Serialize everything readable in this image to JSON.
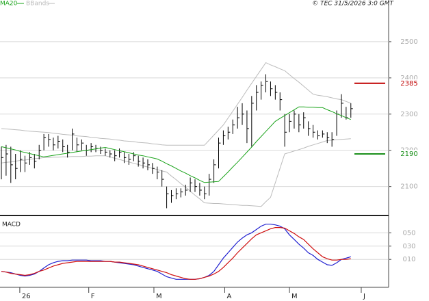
{
  "chart_data": [
    {
      "type": "ohlc",
      "source": "© TEC 31/5/2026 3:0 GMT",
      "x": [
        0,
        1,
        2,
        3,
        4,
        5,
        6,
        7,
        8,
        9,
        10,
        11,
        12,
        13,
        14,
        15,
        16,
        17,
        18,
        19,
        20,
        21,
        22,
        23,
        24,
        25,
        26,
        27,
        28,
        29,
        30,
        31,
        32,
        33,
        34,
        35,
        36,
        37,
        38,
        39,
        40,
        41,
        42,
        43,
        44,
        45,
        46,
        47,
        48,
        49,
        50,
        51,
        52,
        53,
        54,
        55,
        56,
        57,
        58,
        59,
        60,
        61,
        62,
        63,
        64,
        65,
        66,
        67,
        68,
        69,
        70,
        71,
        72,
        73,
        74
      ],
      "xlim": [
        0,
        82
      ],
      "high": [
        2210,
        2215,
        2210,
        2190,
        2200,
        2185,
        2195,
        2190,
        2215,
        2245,
        2245,
        2235,
        2240,
        2230,
        2215,
        2260,
        2235,
        2230,
        2215,
        2220,
        2215,
        2210,
        2205,
        2200,
        2200,
        2205,
        2195,
        2190,
        2195,
        2185,
        2180,
        2175,
        2165,
        2155,
        2145,
        2100,
        2090,
        2095,
        2095,
        2105,
        2125,
        2120,
        2110,
        2100,
        2135,
        2175,
        2235,
        2255,
        2265,
        2285,
        2320,
        2330,
        2310,
        2350,
        2380,
        2390,
        2410,
        2390,
        2380,
        2360,
        2300,
        2300,
        2310,
        2300,
        2305,
        2280,
        2270,
        2255,
        2255,
        2250,
        2250,
        2310,
        2355,
        2320,
        2330
      ],
      "low": [
        2120,
        2130,
        2110,
        2120,
        2140,
        2140,
        2160,
        2150,
        2175,
        2200,
        2210,
        2200,
        2205,
        2195,
        2180,
        2200,
        2195,
        2200,
        2185,
        2195,
        2195,
        2190,
        2185,
        2180,
        2170,
        2180,
        2165,
        2160,
        2170,
        2155,
        2150,
        2145,
        2135,
        2120,
        2100,
        2040,
        2055,
        2065,
        2070,
        2075,
        2085,
        2085,
        2075,
        2065,
        2075,
        2110,
        2150,
        2215,
        2230,
        2245,
        2260,
        2270,
        2220,
        2210,
        2310,
        2340,
        2360,
        2350,
        2340,
        2310,
        2210,
        2250,
        2260,
        2250,
        2260,
        2240,
        2235,
        2230,
        2235,
        2220,
        2210,
        2240,
        2290,
        2285,
        2290
      ],
      "close": [
        2180,
        2190,
        2160,
        2150,
        2175,
        2165,
        2180,
        2170,
        2200,
        2235,
        2230,
        2215,
        2225,
        2210,
        2195,
        2245,
        2215,
        2220,
        2200,
        2210,
        2205,
        2200,
        2195,
        2190,
        2185,
        2195,
        2180,
        2175,
        2185,
        2170,
        2165,
        2160,
        2150,
        2140,
        2120,
        2080,
        2075,
        2080,
        2085,
        2090,
        2110,
        2100,
        2090,
        2080,
        2120,
        2160,
        2220,
        2240,
        2250,
        2270,
        2290,
        2300,
        2260,
        2330,
        2360,
        2380,
        2390,
        2370,
        2360,
        2340,
        2250,
        2280,
        2300,
        2270,
        2290,
        2260,
        2250,
        2240,
        2245,
        2235,
        2230,
        2300,
        2330,
        2290,
        2315
      ],
      "color": "#000000",
      "series": [
        {
          "name": "MA20",
          "color": "#1aa31a",
          "values": [
            2210,
            2207,
            2204,
            2201,
            2197,
            2194,
            2191,
            2188,
            2185,
            2182,
            2184,
            2186,
            2188,
            2190,
            2192,
            2194,
            2196,
            2198,
            2200,
            2202,
            2204,
            2206,
            2208,
            2205,
            2202,
            2199,
            2196,
            2193,
            2190,
            2187,
            2185,
            2182,
            2179,
            2176,
            2170,
            2163,
            2157,
            2150,
            2143,
            2137,
            2130,
            2124,
            2117,
            2111,
            2112,
            2113,
            2114,
            2127,
            2140,
            2154,
            2167,
            2181,
            2195,
            2209,
            2224,
            2238,
            2252,
            2266,
            2280,
            2288,
            2296,
            2304,
            2312,
            2320,
            2320,
            2319,
            2319,
            2318,
            2318,
            2312,
            2307,
            2301,
            2296,
            2290,
            2285
          ]
        },
        {
          "name": "BBands",
          "color": "#bbbbbb",
          "upper": [
            2260,
            2259,
            2258,
            2257,
            2256,
            2254,
            2253,
            2252,
            2251,
            2250,
            2249,
            2247,
            2246,
            2244,
            2243,
            2242,
            2240,
            2239,
            2238,
            2236,
            2235,
            2233,
            2232,
            2231,
            2229,
            2228,
            2226,
            2225,
            2224,
            2222,
            2221,
            2220,
            2218,
            2217,
            2215,
            2214,
            2214,
            2214,
            2214,
            2214,
            2214,
            2214,
            2214,
            2214,
            2228,
            2242,
            2256,
            2270,
            2289,
            2308,
            2327,
            2346,
            2366,
            2385,
            2404,
            2423,
            2442,
            2436,
            2431,
            2425,
            2420,
            2409,
            2398,
            2388,
            2377,
            2366,
            2355,
            2352,
            2350,
            2348,
            2345,
            2342,
            2340,
            2335,
            2330
          ],
          "lower": [
            2165,
            2167,
            2168,
            2170,
            2172,
            2173,
            2175,
            2177,
            2178,
            2180,
            2180,
            2181,
            2181,
            2182,
            2182,
            2183,
            2183,
            2183,
            2184,
            2184,
            2185,
            2185,
            2185,
            2182,
            2178,
            2175,
            2171,
            2168,
            2164,
            2161,
            2157,
            2154,
            2150,
            2147,
            2143,
            2140,
            2129,
            2119,
            2108,
            2098,
            2087,
            2076,
            2066,
            2055,
            2054,
            2053,
            2053,
            2052,
            2051,
            2050,
            2049,
            2048,
            2048,
            2047,
            2046,
            2045,
            2058,
            2070,
            2110,
            2150,
            2190,
            2194,
            2198,
            2202,
            2206,
            2211,
            2215,
            2219,
            2223,
            2227,
            2228,
            2229,
            2230,
            2231,
            2232
          ]
        }
      ],
      "price_lines": [
        {
          "value": 2385,
          "color": "#c00000"
        },
        {
          "value": 2190,
          "color": "#1a8f1a"
        }
      ],
      "ylim": [
        2020,
        2600
      ],
      "yticks": [
        2100,
        2200,
        2300,
        2400,
        2500
      ],
      "grid": true
    },
    {
      "type": "line",
      "title": "MACD",
      "series": [
        {
          "color": "#2020d0",
          "values": [
            -0.08,
            -0.09,
            -0.1,
            -0.12,
            -0.14,
            -0.15,
            -0.14,
            -0.12,
            -0.08,
            -0.03,
            0.02,
            0.05,
            0.07,
            0.08,
            0.08,
            0.09,
            0.09,
            0.09,
            0.09,
            0.08,
            0.08,
            0.08,
            0.07,
            0.07,
            0.06,
            0.05,
            0.04,
            0.03,
            0.02,
            0.0,
            -0.02,
            -0.04,
            -0.06,
            -0.08,
            -0.12,
            -0.16,
            -0.18,
            -0.2,
            -0.2,
            -0.2,
            -0.2,
            -0.2,
            -0.19,
            -0.17,
            -0.14,
            -0.08,
            0.02,
            0.12,
            0.2,
            0.28,
            0.36,
            0.42,
            0.47,
            0.5,
            0.55,
            0.6,
            0.63,
            0.63,
            0.62,
            0.6,
            0.56,
            0.47,
            0.4,
            0.33,
            0.27,
            0.2,
            0.16,
            0.1,
            0.06,
            0.02,
            0.01,
            0.05,
            0.1,
            0.12,
            0.14
          ]
        },
        {
          "color": "#d01010",
          "values": [
            -0.08,
            -0.09,
            -0.11,
            -0.12,
            -0.13,
            -0.14,
            -0.13,
            -0.11,
            -0.08,
            -0.06,
            -0.03,
            0.0,
            0.02,
            0.04,
            0.05,
            0.06,
            0.07,
            0.07,
            0.07,
            0.07,
            0.07,
            0.07,
            0.07,
            0.07,
            0.06,
            0.06,
            0.05,
            0.04,
            0.03,
            0.02,
            0.0,
            -0.02,
            -0.04,
            -0.06,
            -0.08,
            -0.1,
            -0.13,
            -0.15,
            -0.17,
            -0.19,
            -0.2,
            -0.2,
            -0.19,
            -0.17,
            -0.15,
            -0.12,
            -0.08,
            -0.02,
            0.05,
            0.12,
            0.2,
            0.27,
            0.34,
            0.41,
            0.47,
            0.5,
            0.53,
            0.56,
            0.58,
            0.58,
            0.57,
            0.53,
            0.49,
            0.44,
            0.4,
            0.33,
            0.26,
            0.2,
            0.14,
            0.11,
            0.09,
            0.09,
            0.1,
            0.1,
            0.11
          ]
        }
      ],
      "ylim": [
        -0.32,
        0.73
      ],
      "yticks": [
        {
          "value": 0.5,
          "label": "050"
        },
        {
          "value": 0.3,
          "label": "030"
        },
        {
          "value": 0.1,
          "label": "010"
        }
      ],
      "grid": true,
      "xticks": [
        {
          "value": 3.9,
          "label": "26"
        },
        {
          "value": 18.5,
          "label": "F"
        },
        {
          "value": 32.3,
          "label": "M"
        },
        {
          "value": 47.3,
          "label": "A"
        },
        {
          "value": 61,
          "label": "M"
        },
        {
          "value": 76.2,
          "label": "J"
        }
      ]
    }
  ]
}
